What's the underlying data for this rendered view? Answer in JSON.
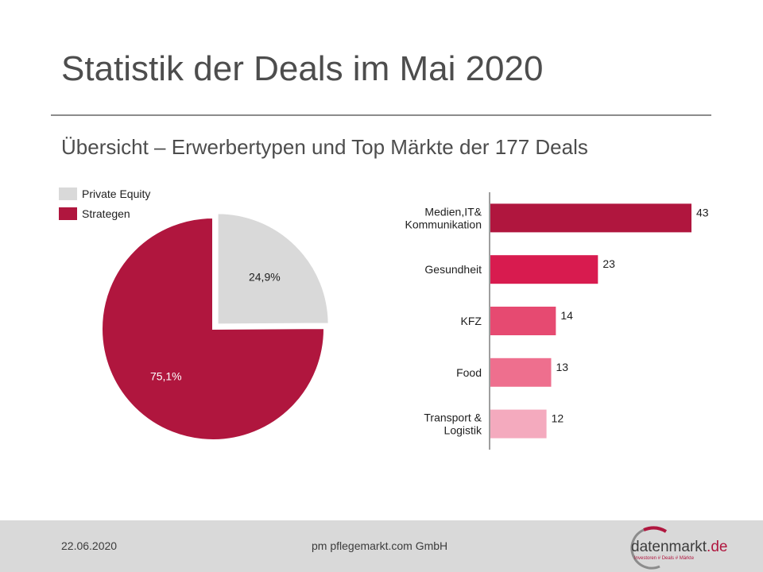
{
  "slide": {
    "title": "Statistik der Deals im Mai 2020",
    "subtitle": "Übersicht – Erwerbertypen und Top Märkte der 177 Deals"
  },
  "legend": {
    "items": [
      {
        "label": "Private Equity",
        "color": "#d9d9d9"
      },
      {
        "label": "Strategen",
        "color": "#b0163e"
      }
    ]
  },
  "chart_data": [
    {
      "type": "pie",
      "labels": [
        "Private Equity",
        "Strategen"
      ],
      "values": [
        24.9,
        75.1
      ],
      "data_labels": [
        "24,9%",
        "75,1%"
      ],
      "colors": [
        "#d9d9d9",
        "#b0163e"
      ],
      "exploded": "Private Equity",
      "legend_position": "top-left"
    },
    {
      "type": "bar",
      "orientation": "horizontal",
      "categories": [
        [
          "Medien,IT&",
          "Kommunikation"
        ],
        [
          "Gesundheit"
        ],
        [
          "KFZ"
        ],
        [
          "Food"
        ],
        [
          "Transport &",
          "Logistik"
        ]
      ],
      "values": [
        43,
        23,
        14,
        13,
        12
      ],
      "data_labels": [
        "43",
        "23",
        "14",
        "13",
        "12"
      ],
      "colors": [
        "#b0163e",
        "#d81b4f",
        "#e64a71",
        "#ee6f8e",
        "#f4aabe"
      ]
    }
  ],
  "footer": {
    "date": "22.06.2020",
    "company": "pm pflegemarkt.com GmbH",
    "logo_name": "datenmarkt",
    "logo_tld": ".de",
    "logo_tagline": "Investoren # Deals # Märkte"
  }
}
